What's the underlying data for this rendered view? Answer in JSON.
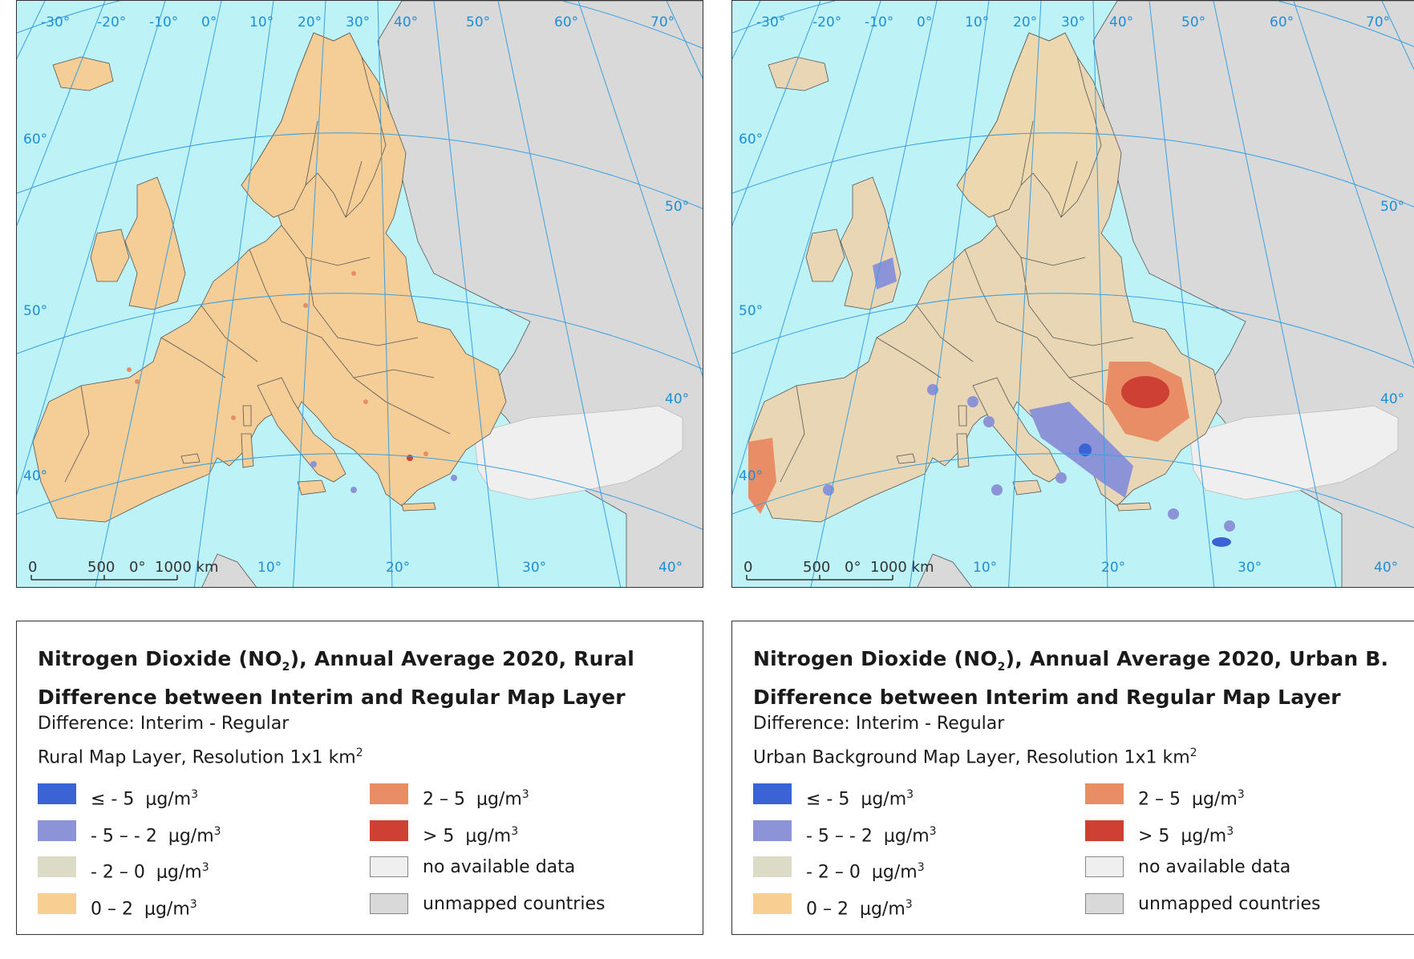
{
  "panels": [
    {
      "id": "rural",
      "title_line1_prefix": "Nitrogen Dioxide (NO",
      "title_line1_sub": "2",
      "title_line1_suffix": "), Annual Average 2020, Rural",
      "title_line2": "Difference between Interim and Regular Map Layer",
      "subtitle1": "Difference: Interim - Regular",
      "subtitle2_prefix": "Rural Map Layer, Resolution 1x1 km",
      "subtitle2_sup": "2",
      "lon_ticks": [
        "-30°",
        "-20°",
        "-10°",
        "0°",
        "10°",
        "20°",
        "30°",
        "40°",
        "50°",
        "60°",
        "70°"
      ],
      "lat_ticks": [
        "60°",
        "50°",
        "40°"
      ],
      "right_lat_ticks": [
        "50°",
        "40°"
      ],
      "bottom_lon_ticks": [
        "10°",
        "20°",
        "30°",
        "40°"
      ],
      "scale_labels": [
        "0",
        "500",
        "0°",
        "1000 km"
      ]
    },
    {
      "id": "urban",
      "title_line1_prefix": "Nitrogen Dioxide (NO",
      "title_line1_sub": "2",
      "title_line1_suffix": "), Annual Average 2020, Urban B.",
      "title_line2": "Difference between Interim and Regular Map Layer",
      "subtitle1": "Difference: Interim - Regular",
      "subtitle2_prefix": "Urban Background Map Layer, Resolution 1x1 km",
      "subtitle2_sup": "2",
      "lon_ticks": [
        "-30°",
        "-20°",
        "-10°",
        "0°",
        "10°",
        "20°",
        "30°",
        "40°",
        "50°",
        "60°",
        "70°"
      ],
      "lat_ticks": [
        "60°",
        "50°",
        "40°"
      ],
      "right_lat_ticks": [
        "50°",
        "40°"
      ],
      "bottom_lon_ticks": [
        "10°",
        "20°",
        "30°",
        "40°"
      ],
      "scale_labels": [
        "0",
        "500",
        "0°",
        "1000 km"
      ]
    }
  ],
  "legend": {
    "unit": "μg/m",
    "unit_sup": "3",
    "classes": [
      {
        "label": "≤ - 5",
        "color": "#3b63d6"
      },
      {
        "label": "- 5 – - 2",
        "color": "#8c93d6"
      },
      {
        "label": "- 2 – 0",
        "color": "#dcdcc6"
      },
      {
        "label": "0 – 2",
        "color": "#f7cf93"
      },
      {
        "label": "2 – 5",
        "color": "#e88d66"
      },
      {
        "label": "> 5",
        "color": "#cd4033"
      },
      {
        "label": "no available data",
        "color": "#efefef"
      },
      {
        "label": "unmapped countries",
        "color": "#d9d9d9"
      }
    ]
  },
  "map_colors": {
    "sea": "#bdf3f7",
    "land_mapped": "#f5cd96",
    "unmapped": "#d9d9d9",
    "no_data": "#efefef",
    "graticule": "#3aa0e0",
    "border": "#555555"
  }
}
